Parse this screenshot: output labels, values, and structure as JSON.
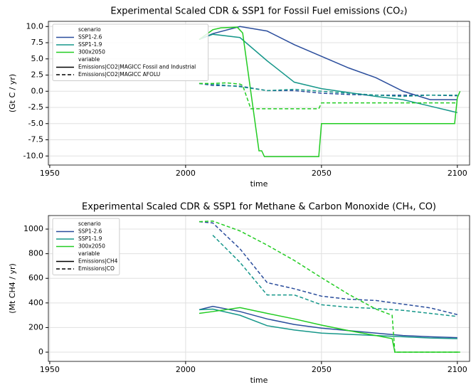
{
  "chart_data": [
    {
      "type": "line",
      "title": "Experimental Scaled CDR & SSP1 for Fossil Fuel emissions (CO₂)",
      "xlabel": "time",
      "ylabel": "(Gt C / yr)",
      "xlim": [
        1949.5,
        2104.5
      ],
      "xticks": [
        1950,
        2000,
        2050,
        2100
      ],
      "ylim": [
        -11.4,
        10.8
      ],
      "yticks": [
        {
          "value": -10,
          "label": "-10.0"
        },
        -7.5,
        {
          "value": -5,
          "label": "-5.0"
        },
        -2.5,
        {
          "value": 0,
          "label": "0.0"
        },
        2.5,
        {
          "value": 5,
          "label": "5.0"
        },
        7.5,
        {
          "value": 10,
          "label": "10.0"
        }
      ],
      "grid": true,
      "legend": {
        "loc": "upper left",
        "groups": [
          {
            "title": "scenario",
            "entries": [
              {
                "name": "SSP1-2.6",
                "color": "#2a4d9c"
              },
              {
                "name": "SSP1-1.9",
                "color": "#16978a"
              },
              {
                "name": "300x2050",
                "color": "#22cc22"
              }
            ]
          },
          {
            "title": "variable",
            "entries": [
              {
                "name": "Emissions|CO2|MAGICC Fossil and Industrial",
                "dash": "solid"
              },
              {
                "name": "Emissions|CO2|MAGICC AFOLU",
                "dash": "dashed"
              }
            ]
          }
        ]
      },
      "series": [
        {
          "scenario": 0,
          "variable": 0,
          "x": [
            2005,
            2010,
            2020,
            2030,
            2040,
            2050,
            2060,
            2070,
            2080,
            2090,
            2100
          ],
          "values": [
            8.0,
            8.9,
            10.0,
            9.3,
            7.2,
            5.4,
            3.6,
            2.1,
            0.0,
            -1.3,
            -1.3
          ]
        },
        {
          "scenario": 1,
          "variable": 0,
          "x": [
            2005,
            2010,
            2020,
            2030,
            2040,
            2050,
            2060,
            2070,
            2080,
            2090,
            2100
          ],
          "values": [
            8.0,
            8.8,
            8.3,
            4.7,
            1.4,
            0.4,
            -0.2,
            -0.8,
            -1.3,
            -2.3,
            -3.3
          ]
        },
        {
          "scenario": 2,
          "variable": 0,
          "x": [
            2005,
            2010,
            2013,
            2019,
            2021,
            2027,
            2028,
            2029,
            2049,
            2050,
            2099,
            2100,
            2101
          ],
          "values": [
            8.0,
            9.5,
            9.8,
            9.9,
            9.0,
            -9.2,
            -9.2,
            -10.1,
            -10.1,
            -5.0,
            -5.0,
            -1.0,
            0.0
          ]
        },
        {
          "scenario": 0,
          "variable": 1,
          "x": [
            2005,
            2010,
            2020,
            2030,
            2040,
            2050,
            2060,
            2070,
            2080,
            2090,
            2100
          ],
          "values": [
            1.2,
            0.9,
            0.8,
            0.1,
            0.1,
            -0.3,
            -0.5,
            -0.6,
            -0.6,
            -0.6,
            -0.7
          ]
        },
        {
          "scenario": 1,
          "variable": 1,
          "x": [
            2005,
            2010,
            2020,
            2030,
            2040,
            2050,
            2060,
            2070,
            2080,
            2090,
            2100
          ],
          "values": [
            1.2,
            1.1,
            0.7,
            0.1,
            0.3,
            0.0,
            -0.3,
            -0.6,
            -0.8,
            -0.6,
            -0.6
          ]
        },
        {
          "scenario": 2,
          "variable": 1,
          "x": [
            2005,
            2010,
            2015,
            2020,
            2021,
            2024,
            2049,
            2050,
            2100
          ],
          "values": [
            1.2,
            1.2,
            1.3,
            1.1,
            0.9,
            -2.7,
            -2.7,
            -1.8,
            -1.8
          ]
        }
      ]
    },
    {
      "type": "line",
      "title": "Experimental Scaled CDR & SSP1 for Methane & Carbon Monoxide (CH₄, CO)",
      "xlabel": "time",
      "ylabel": "(Mt CH4 / yr)",
      "xlim": [
        1949.5,
        2104.5
      ],
      "xticks": [
        1950,
        2000,
        2050,
        2100
      ],
      "ylim": [
        -75,
        1110
      ],
      "yticks": [
        0,
        200,
        400,
        600,
        800,
        1000
      ],
      "grid": true,
      "legend": {
        "loc": "upper left",
        "groups": [
          {
            "title": "scenario",
            "entries": [
              {
                "name": "SSP1-2.6",
                "color": "#2a4d9c"
              },
              {
                "name": "SSP1-1.9",
                "color": "#16978a"
              },
              {
                "name": "300x2050",
                "color": "#22cc22"
              }
            ]
          },
          {
            "title": "variable",
            "entries": [
              {
                "name": "Emissions|CH4",
                "dash": "solid"
              },
              {
                "name": "Emissions|CO",
                "dash": "dashed"
              }
            ]
          }
        ]
      },
      "series": [
        {
          "scenario": 0,
          "variable": 0,
          "x": [
            2005,
            2010,
            2020,
            2030,
            2040,
            2050,
            2060,
            2070,
            2080,
            2090,
            2100
          ],
          "values": [
            345,
            372,
            330,
            270,
            225,
            195,
            175,
            155,
            135,
            125,
            118
          ]
        },
        {
          "scenario": 1,
          "variable": 0,
          "x": [
            2005,
            2010,
            2020,
            2030,
            2040,
            2050,
            2060,
            2070,
            2080,
            2090,
            2100
          ],
          "values": [
            345,
            350,
            300,
            215,
            180,
            155,
            145,
            135,
            125,
            115,
            110
          ]
        },
        {
          "scenario": 2,
          "variable": 0,
          "x": [
            2005,
            2010,
            2020,
            2030,
            2040,
            2050,
            2060,
            2070,
            2076,
            2077,
            2101
          ],
          "values": [
            315,
            330,
            362,
            315,
            270,
            220,
            175,
            135,
            110,
            0,
            0
          ]
        },
        {
          "scenario": 0,
          "variable": 1,
          "x": [
            2005,
            2010,
            2020,
            2030,
            2040,
            2050,
            2060,
            2070,
            2080,
            2090,
            2100
          ],
          "values": [
            1060,
            1050,
            840,
            565,
            515,
            455,
            430,
            420,
            390,
            360,
            305
          ]
        },
        {
          "scenario": 1,
          "variable": 1,
          "x": [
            2010,
            2020,
            2030,
            2040,
            2050,
            2060,
            2070,
            2080,
            2090,
            2100
          ],
          "values": [
            950,
            730,
            465,
            465,
            385,
            365,
            355,
            340,
            315,
            290
          ]
        },
        {
          "scenario": 2,
          "variable": 1,
          "x": [
            2005,
            2010,
            2020,
            2030,
            2040,
            2050,
            2060,
            2070,
            2076,
            2077,
            2101
          ],
          "values": [
            1060,
            1065,
            985,
            870,
            745,
            605,
            470,
            350,
            300,
            0,
            0
          ]
        }
      ]
    }
  ]
}
